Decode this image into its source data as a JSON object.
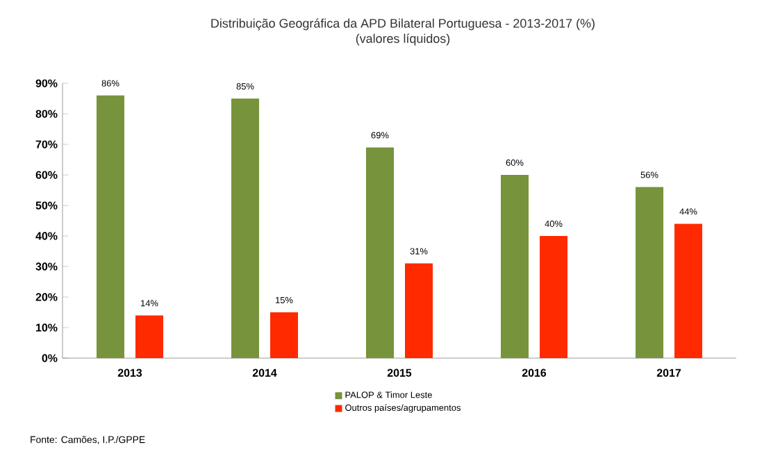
{
  "chart_data": {
    "type": "bar",
    "title": "Distribuição Geográfica da APD Bilateral Portuguesa - 2013-2017 (%)",
    "subtitle": "(valores líquidos)",
    "categories": [
      "2013",
      "2014",
      "2015",
      "2016",
      "2017"
    ],
    "series": [
      {
        "name": "PALOP & Timor Leste",
        "color": "#77933c",
        "values": [
          86,
          85,
          69,
          60,
          56
        ],
        "value_labels": [
          "86%",
          "85%",
          "69%",
          "60%",
          "56%"
        ]
      },
      {
        "name": "Outros países/agrupamentos",
        "color": "#ff2a00",
        "values": [
          14,
          15,
          31,
          40,
          44
        ],
        "value_labels": [
          "14%",
          "15%",
          "31%",
          "40%",
          "44%"
        ]
      }
    ],
    "ylim": [
      0,
      90
    ],
    "yticks": [
      {
        "value": 0,
        "label": "0%"
      },
      {
        "value": 10,
        "label": "10%"
      },
      {
        "value": 20,
        "label": "20%"
      },
      {
        "value": 30,
        "label": "30%"
      },
      {
        "value": 40,
        "label": "40%"
      },
      {
        "value": 50,
        "label": "50%"
      },
      {
        "value": 60,
        "label": "60%"
      },
      {
        "value": 70,
        "label": "70%"
      },
      {
        "value": 80,
        "label": "80%"
      },
      {
        "value": 90,
        "label": "90%"
      }
    ],
    "legend": "bottom",
    "annotations": [
      "Fonte: Camões, I.P./GPPE"
    ]
  }
}
